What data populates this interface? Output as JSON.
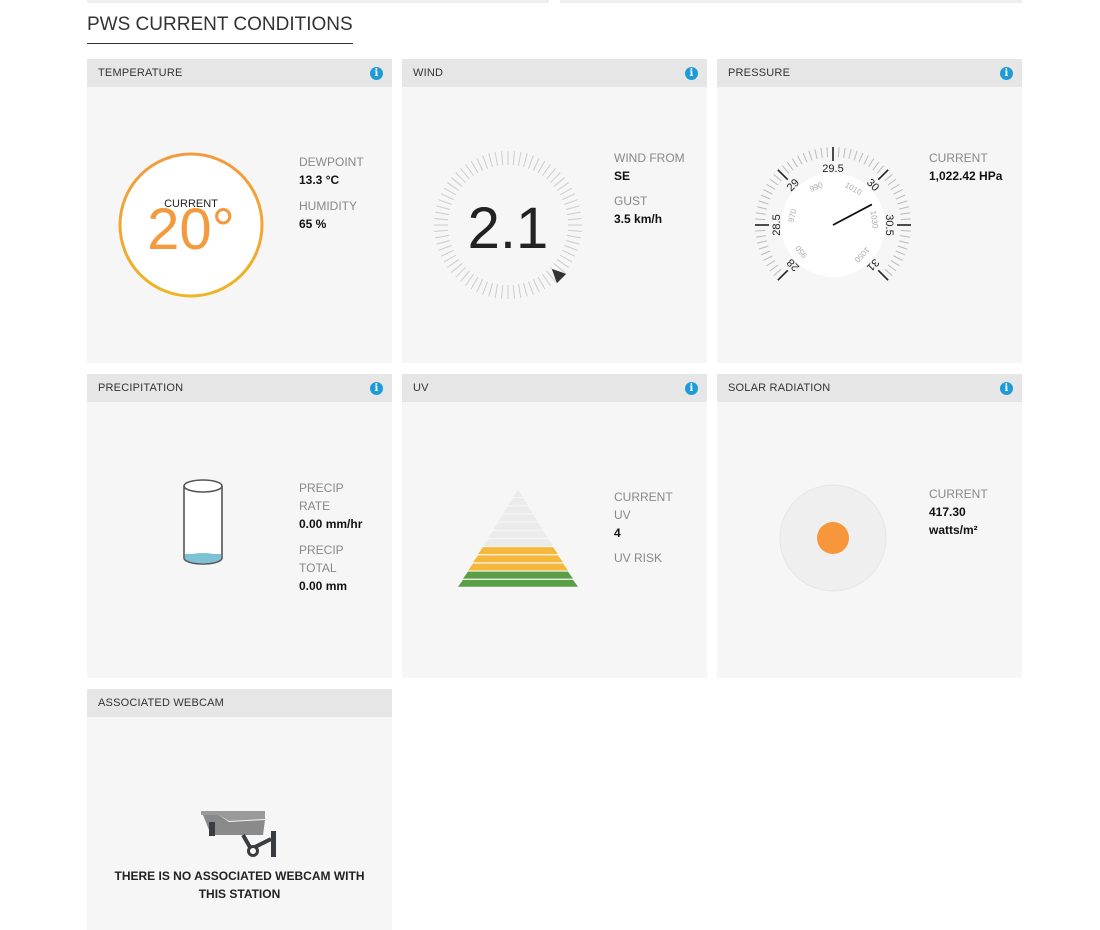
{
  "page_title": "PWS CURRENT CONDITIONS",
  "colors": {
    "accent": "#f7963a",
    "info": "#1e9bd7",
    "uv_green": "#5a9e46",
    "uv_yellow": "#f6b83a"
  },
  "temperature": {
    "title": "TEMPERATURE",
    "current_label": "CURRENT",
    "current": "20°",
    "dewpoint_label": "DEWPOINT",
    "dewpoint": "13.3 °C",
    "humidity_label": "HUMIDITY",
    "humidity": "65 %"
  },
  "wind": {
    "title": "WIND",
    "speed": "2.1",
    "from_label": "WIND FROM",
    "from": "SE",
    "direction_deg": 135,
    "gust_label": "GUST",
    "gust": "3.5 km/h"
  },
  "pressure": {
    "title": "PRESSURE",
    "current_label": "CURRENT",
    "current": "1,022.42 HPa",
    "inhg_value": 30.19,
    "outer_ticks": [
      "28",
      "28.5",
      "29",
      "29.5",
      "30",
      "30.5",
      "31"
    ],
    "inner_ticks": [
      "950",
      "970",
      "990",
      "1010",
      "1030",
      "1050"
    ]
  },
  "precipitation": {
    "title": "PRECIPITATION",
    "rate_label1": "PRECIP",
    "rate_label2": "RATE",
    "rate": "0.00 mm/hr",
    "total_label1": "PRECIP",
    "total_label2": "TOTAL",
    "total": "0.00 mm"
  },
  "uv": {
    "title": "UV",
    "current_label1": "CURRENT",
    "current_label2": "UV",
    "current": "4",
    "risk_label": "UV RISK",
    "level": 5,
    "levels_total": 12
  },
  "solar": {
    "title": "SOLAR RADIATION",
    "current_label": "CURRENT",
    "current": "417.30",
    "unit": "watts/m²"
  },
  "webcam": {
    "title": "ASSOCIATED WEBCAM",
    "message": "THERE IS NO ASSOCIATED WEBCAM WITH THIS STATION"
  },
  "info_icon": "i"
}
